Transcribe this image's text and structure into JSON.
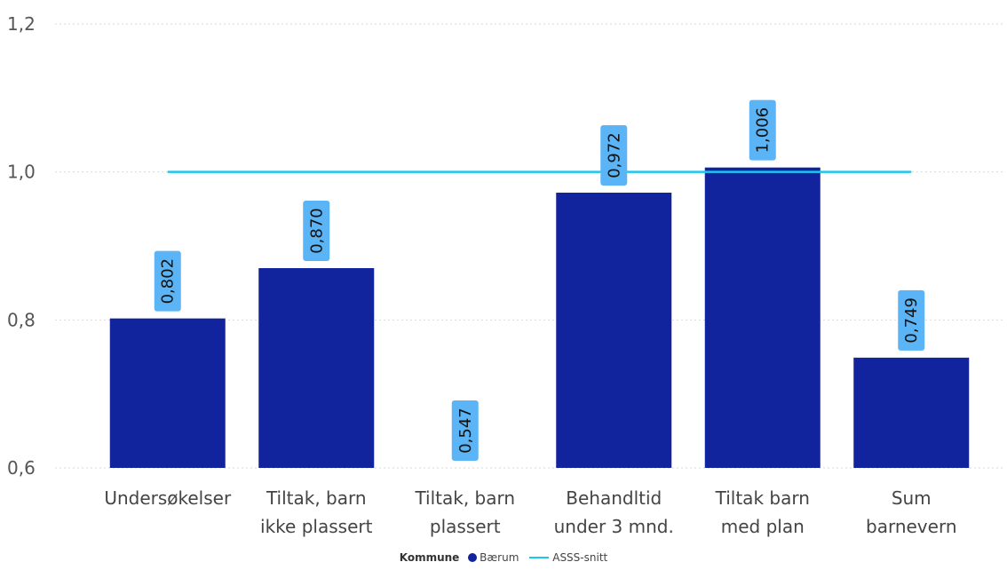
{
  "chart_data": {
    "type": "bar",
    "categories": [
      [
        "Undersøkelser"
      ],
      [
        "Tiltak, barn",
        "ikke plassert"
      ],
      [
        "Tiltak, barn",
        "plassert"
      ],
      [
        "Behandltid",
        "under 3 mnd."
      ],
      [
        "Tiltak barn",
        "med plan"
      ],
      [
        "Sum",
        "barnevern"
      ]
    ],
    "series": [
      {
        "name": "Bærum",
        "values": [
          0.802,
          0.87,
          0.547,
          0.972,
          1.006,
          0.749
        ],
        "labels": [
          "0,802",
          "0,870",
          "0,547",
          "0,972",
          "1,006",
          "0,749"
        ],
        "color": "#12239E"
      },
      {
        "name": "ASSS-snitt",
        "type": "line",
        "value": 1.0,
        "color": "#19C8EE"
      }
    ],
    "ylim": [
      0.6,
      1.2
    ],
    "yticks": [
      0.6,
      0.8,
      1.0,
      1.2
    ],
    "ytick_labels": [
      "0,6",
      "0,8",
      "1,0",
      "1,2"
    ],
    "grid": true,
    "label_box_color": "#5AB4F5",
    "legend": {
      "title": "Kommune",
      "placement": "bottom-center"
    }
  }
}
